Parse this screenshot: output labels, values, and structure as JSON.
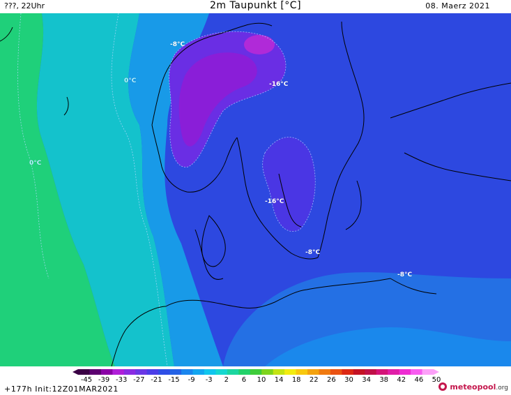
{
  "header": {
    "left_text": "???, 22Uhr",
    "title": "2m Taupunkt [°C]",
    "date": "08. Maerz 2021"
  },
  "map": {
    "labels": [
      {
        "text": "-8°C",
        "style": "white"
      },
      {
        "text": "0°C",
        "style": "light"
      },
      {
        "text": "-16°C",
        "style": "white"
      },
      {
        "text": "0°C",
        "style": "light"
      },
      {
        "text": "-16°C",
        "style": "white"
      },
      {
        "text": "-8°C",
        "style": "white"
      },
      {
        "text": "-8°C",
        "style": "white"
      }
    ]
  },
  "legend": {
    "ticks": [
      "-45",
      "-39",
      "-33",
      "-27",
      "-21",
      "-15",
      "-9",
      "-3",
      "2",
      "6",
      "10",
      "14",
      "18",
      "22",
      "26",
      "30",
      "34",
      "38",
      "42",
      "46",
      "50"
    ],
    "colors": [
      "#3a0044",
      "#5c0070",
      "#8a00a6",
      "#b01ed8",
      "#8a2be2",
      "#6a37e5",
      "#4b3de8",
      "#2f4fe6",
      "#2362e6",
      "#1a86ee",
      "#12a6f0",
      "#10c6ee",
      "#16d8d0",
      "#1cd6a0",
      "#22d26a",
      "#3ecc3a",
      "#7ed41c",
      "#c4e414",
      "#f2ec10",
      "#f8c80e",
      "#f4a20e",
      "#f07a10",
      "#ea5212",
      "#dc2814",
      "#c41224",
      "#c01048",
      "#d41478",
      "#e01ea8",
      "#ee2cd2",
      "#f85cf0",
      "#fca0f8"
    ]
  },
  "footer": {
    "run_info": "+177h Init:12Z01MAR2021",
    "logo_main": "meteopool",
    "logo_suffix": ".org"
  }
}
